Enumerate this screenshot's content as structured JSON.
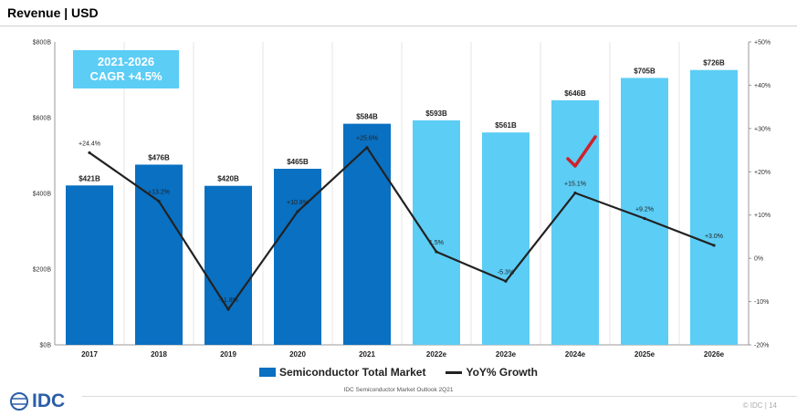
{
  "header": {
    "title": "Revenue | USD"
  },
  "cagr": {
    "line1": "2021-2026",
    "line2": "CAGR +4.5%"
  },
  "legend": {
    "bar_label": "Semiconductor Total Market",
    "line_label": "YoY% Growth"
  },
  "source": "IDC Semiconductor Market Outlook 2Q21",
  "footer": {
    "logo": "IDC",
    "note": "© IDC | 14"
  },
  "colors": {
    "actual": "#0970c2",
    "forecast": "#5ccdf5",
    "line": "#222222",
    "checkmark": "#d0202a"
  },
  "chart_data": {
    "type": "bar",
    "categories": [
      "2017",
      "2018",
      "2019",
      "2020",
      "2021",
      "2022e",
      "2023e",
      "2024e",
      "2025e",
      "2026e"
    ],
    "series": [
      {
        "name": "Semiconductor Total Market",
        "type": "bar",
        "values": [
          421,
          476,
          420,
          465,
          584,
          593,
          561,
          646,
          705,
          726
        ],
        "labels": [
          "$421B",
          "$476B",
          "$420B",
          "$465B",
          "$584B",
          "$593B",
          "$561B",
          "$646B",
          "$705B",
          "$726B"
        ],
        "forecast_from_index": 5
      },
      {
        "name": "YoY% Growth",
        "type": "line",
        "axis": "right",
        "values": [
          24.4,
          13.2,
          -11.8,
          10.8,
          25.6,
          1.5,
          -5.3,
          15.1,
          9.2,
          3.0
        ],
        "labels": [
          "+24.4%",
          "+13.2%",
          "-11.8%",
          "+10.8%",
          "+25.6%",
          "1.5%",
          "-5.3%",
          "+15.1%",
          "+9.2%",
          "+3.0%"
        ]
      }
    ],
    "y_left": {
      "ylim": [
        0,
        800
      ],
      "ticks": [
        "$0B",
        "$200B",
        "$400B",
        "$600B",
        "$800B"
      ]
    },
    "y_right": {
      "ylim": [
        -20,
        50
      ],
      "ticks": [
        "-20%",
        "-10%",
        "0%",
        "+10%",
        "+20%",
        "+30%",
        "+40%",
        "+50%"
      ]
    },
    "annotation": {
      "type": "checkmark",
      "category": "2024e"
    },
    "grid": "vertical",
    "legend_position": "bottom"
  }
}
